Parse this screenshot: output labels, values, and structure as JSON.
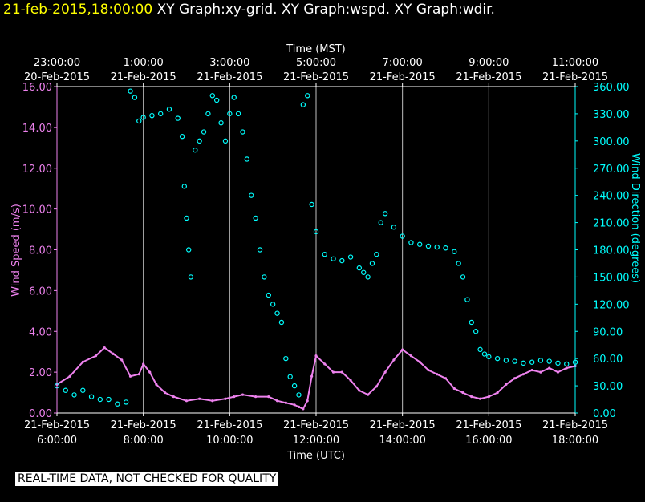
{
  "header": {
    "time_label": "21-feb-2015,18:00:00",
    "graphs_label": "XY Graph:xy-grid.  XY Graph:wspd.  XY Graph:wdir."
  },
  "footer": {
    "disclaimer": "REAL-TIME DATA, NOT CHECKED FOR QUALITY"
  },
  "chart_data": {
    "type": "scatter",
    "title": "",
    "xlabel_bottom": "Time (UTC)",
    "xlabel_top": "Time (MST)",
    "ylabel_left": "Wind Speed (m/s)",
    "ylabel_right": "Wind Direction (degrees)",
    "x_ticks_bottom": [
      {
        "hour": 6,
        "date": "21-Feb-2015",
        "time": "6:00:00"
      },
      {
        "hour": 8,
        "date": "21-Feb-2015",
        "time": "8:00:00"
      },
      {
        "hour": 10,
        "date": "21-Feb-2015",
        "time": "10:00:00"
      },
      {
        "hour": 12,
        "date": "21-Feb-2015",
        "time": "12:00:00"
      },
      {
        "hour": 14,
        "date": "21-Feb-2015",
        "time": "14:00:00"
      },
      {
        "hour": 16,
        "date": "21-Feb-2015",
        "time": "16:00:00"
      },
      {
        "hour": 18,
        "date": "21-Feb-2015",
        "time": "18:00:00"
      }
    ],
    "x_ticks_top": [
      {
        "hour": 6,
        "time": "23:00:00",
        "date": "20-Feb-2015"
      },
      {
        "hour": 8,
        "time": "1:00:00",
        "date": "21-Feb-2015"
      },
      {
        "hour": 10,
        "time": "3:00:00",
        "date": "21-Feb-2015"
      },
      {
        "hour": 12,
        "time": "5:00:00",
        "date": "21-Feb-2015"
      },
      {
        "hour": 14,
        "time": "7:00:00",
        "date": "21-Feb-2015"
      },
      {
        "hour": 16,
        "time": "9:00:00",
        "date": "21-Feb-2015"
      },
      {
        "hour": 18,
        "time": "11:00:00",
        "date": "21-Feb-2015"
      }
    ],
    "x_range_hours_utc": [
      6,
      18
    ],
    "y_left_range": [
      0,
      16
    ],
    "y_left_ticks": [
      "0.00",
      "2.00",
      "4.00",
      "6.00",
      "8.00",
      "10.00",
      "12.00",
      "14.00",
      "16.00"
    ],
    "y_right_range": [
      0,
      360
    ],
    "y_right_ticks": [
      "0.00",
      "30.00",
      "60.00",
      "90.00",
      "120.00",
      "150.00",
      "180.00",
      "210.00",
      "240.00",
      "270.00",
      "300.00",
      "330.00",
      "360.00"
    ],
    "grid": "vertical",
    "series": [
      {
        "name": "Wind Speed",
        "axis": "left",
        "color": "#ee82ee",
        "points": [
          [
            6.0,
            1.4
          ],
          [
            6.3,
            1.8
          ],
          [
            6.6,
            2.5
          ],
          [
            6.9,
            2.8
          ],
          [
            7.1,
            3.2
          ],
          [
            7.3,
            2.9
          ],
          [
            7.5,
            2.6
          ],
          [
            7.7,
            1.8
          ],
          [
            7.9,
            1.9
          ],
          [
            8.0,
            2.4
          ],
          [
            8.15,
            2.0
          ],
          [
            8.3,
            1.4
          ],
          [
            8.5,
            1.0
          ],
          [
            8.7,
            0.8
          ],
          [
            9.0,
            0.6
          ],
          [
            9.3,
            0.7
          ],
          [
            9.6,
            0.6
          ],
          [
            9.9,
            0.7
          ],
          [
            10.1,
            0.8
          ],
          [
            10.3,
            0.9
          ],
          [
            10.6,
            0.8
          ],
          [
            10.9,
            0.8
          ],
          [
            11.1,
            0.6
          ],
          [
            11.3,
            0.5
          ],
          [
            11.5,
            0.4
          ],
          [
            11.6,
            0.3
          ],
          [
            11.7,
            0.2
          ],
          [
            11.8,
            0.6
          ],
          [
            11.9,
            1.8
          ],
          [
            12.0,
            2.8
          ],
          [
            12.2,
            2.4
          ],
          [
            12.4,
            2.0
          ],
          [
            12.6,
            2.0
          ],
          [
            12.8,
            1.6
          ],
          [
            13.0,
            1.1
          ],
          [
            13.2,
            0.9
          ],
          [
            13.4,
            1.3
          ],
          [
            13.6,
            2.0
          ],
          [
            13.8,
            2.6
          ],
          [
            14.0,
            3.1
          ],
          [
            14.2,
            2.8
          ],
          [
            14.4,
            2.5
          ],
          [
            14.6,
            2.1
          ],
          [
            14.8,
            1.9
          ],
          [
            15.0,
            1.7
          ],
          [
            15.2,
            1.2
          ],
          [
            15.4,
            1.0
          ],
          [
            15.6,
            0.8
          ],
          [
            15.8,
            0.7
          ],
          [
            16.0,
            0.8
          ],
          [
            16.2,
            1.0
          ],
          [
            16.4,
            1.4
          ],
          [
            16.6,
            1.7
          ],
          [
            16.8,
            1.9
          ],
          [
            17.0,
            2.1
          ],
          [
            17.2,
            2.0
          ],
          [
            17.4,
            2.2
          ],
          [
            17.6,
            2.0
          ],
          [
            17.8,
            2.2
          ],
          [
            18.0,
            2.3
          ]
        ]
      },
      {
        "name": "Wind Direction",
        "axis": "right",
        "color": "#00ffff",
        "points": [
          [
            6.0,
            30
          ],
          [
            6.2,
            25
          ],
          [
            6.4,
            20
          ],
          [
            6.6,
            25
          ],
          [
            6.8,
            18
          ],
          [
            7.0,
            15
          ],
          [
            7.2,
            15
          ],
          [
            7.4,
            10
          ],
          [
            7.6,
            12
          ],
          [
            7.7,
            355
          ],
          [
            7.8,
            348
          ],
          [
            7.9,
            322
          ],
          [
            8.0,
            326
          ],
          [
            8.2,
            328
          ],
          [
            8.4,
            330
          ],
          [
            8.6,
            335
          ],
          [
            8.8,
            325
          ],
          [
            8.9,
            305
          ],
          [
            8.95,
            250
          ],
          [
            9.0,
            215
          ],
          [
            9.05,
            180
          ],
          [
            9.1,
            150
          ],
          [
            9.2,
            290
          ],
          [
            9.3,
            300
          ],
          [
            9.4,
            310
          ],
          [
            9.5,
            330
          ],
          [
            9.6,
            350
          ],
          [
            9.7,
            345
          ],
          [
            9.8,
            320
          ],
          [
            9.9,
            300
          ],
          [
            10.0,
            330
          ],
          [
            10.1,
            348
          ],
          [
            10.2,
            330
          ],
          [
            10.3,
            310
          ],
          [
            10.4,
            280
          ],
          [
            10.5,
            240
          ],
          [
            10.6,
            215
          ],
          [
            10.7,
            180
          ],
          [
            10.8,
            150
          ],
          [
            10.9,
            130
          ],
          [
            11.0,
            120
          ],
          [
            11.1,
            110
          ],
          [
            11.2,
            100
          ],
          [
            11.3,
            60
          ],
          [
            11.4,
            40
          ],
          [
            11.5,
            30
          ],
          [
            11.6,
            20
          ],
          [
            11.7,
            340
          ],
          [
            11.8,
            350
          ],
          [
            11.9,
            230
          ],
          [
            12.0,
            200
          ],
          [
            12.2,
            175
          ],
          [
            12.4,
            170
          ],
          [
            12.6,
            168
          ],
          [
            12.8,
            172
          ],
          [
            13.0,
            160
          ],
          [
            13.1,
            155
          ],
          [
            13.2,
            150
          ],
          [
            13.3,
            165
          ],
          [
            13.4,
            175
          ],
          [
            13.5,
            210
          ],
          [
            13.6,
            220
          ],
          [
            13.8,
            205
          ],
          [
            14.0,
            195
          ],
          [
            14.2,
            188
          ],
          [
            14.4,
            186
          ],
          [
            14.6,
            184
          ],
          [
            14.8,
            183
          ],
          [
            15.0,
            182
          ],
          [
            15.2,
            178
          ],
          [
            15.3,
            165
          ],
          [
            15.4,
            150
          ],
          [
            15.5,
            125
          ],
          [
            15.6,
            100
          ],
          [
            15.7,
            90
          ],
          [
            15.8,
            70
          ],
          [
            15.9,
            65
          ],
          [
            16.0,
            62
          ],
          [
            16.2,
            60
          ],
          [
            16.4,
            58
          ],
          [
            16.6,
            57
          ],
          [
            16.8,
            55
          ],
          [
            17.0,
            56
          ],
          [
            17.2,
            58
          ],
          [
            17.4,
            57
          ],
          [
            17.6,
            55
          ],
          [
            17.8,
            54
          ],
          [
            18.0,
            56
          ]
        ]
      }
    ]
  }
}
